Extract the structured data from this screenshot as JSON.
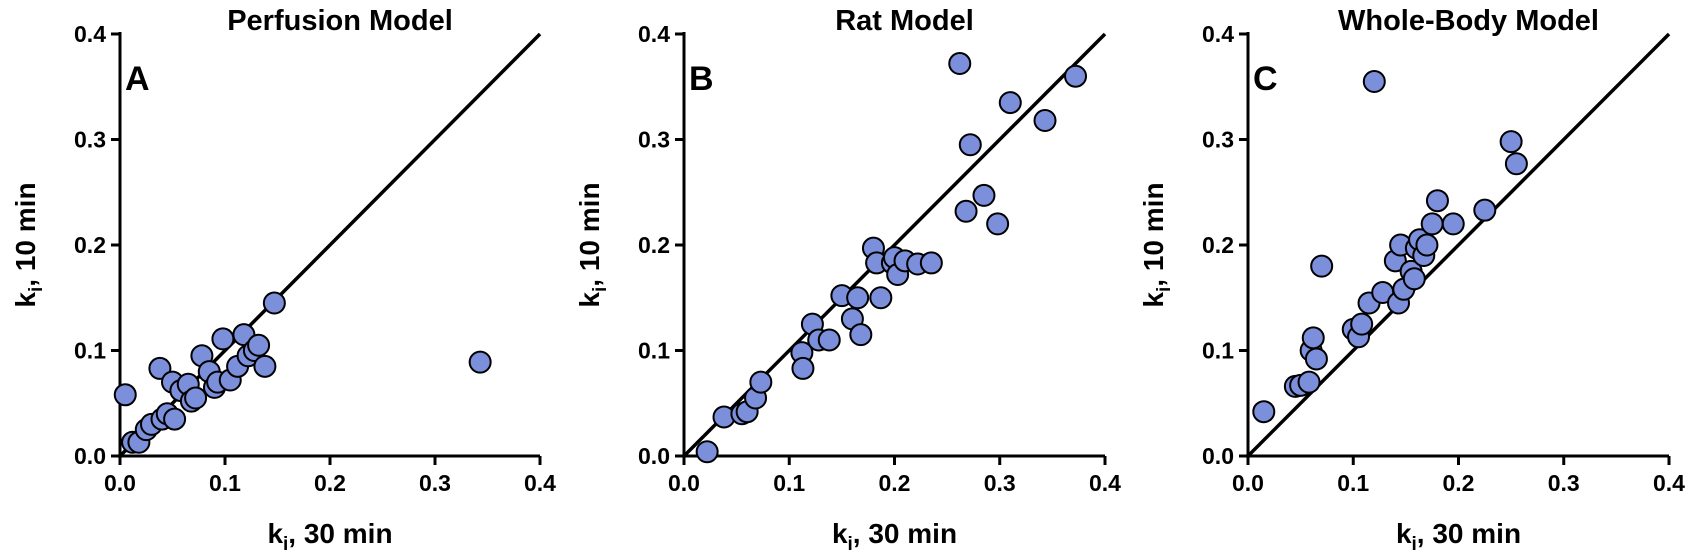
{
  "colors": {
    "marker": "#7B8FDB",
    "axis": "#000000"
  },
  "chart_data": [
    {
      "type": "scatter",
      "panel": "A",
      "title": "Perfusion Model",
      "xlabel_main": "k",
      "xlabel_sub": "i",
      "xlabel_rest": ", 30 min",
      "ylabel_main": "k",
      "ylabel_sub": "i",
      "ylabel_rest": ", 10 min",
      "xlim": [
        0,
        0.4
      ],
      "ylim": [
        0,
        0.4
      ],
      "ticks": [
        "0.0",
        "0.1",
        "0.2",
        "0.3",
        "0.4"
      ],
      "identity_line": true,
      "points": [
        [
          0.005,
          0.058
        ],
        [
          0.012,
          0.013
        ],
        [
          0.018,
          0.013
        ],
        [
          0.025,
          0.025
        ],
        [
          0.03,
          0.03
        ],
        [
          0.038,
          0.083
        ],
        [
          0.04,
          0.035
        ],
        [
          0.045,
          0.04
        ],
        [
          0.05,
          0.07
        ],
        [
          0.052,
          0.035
        ],
        [
          0.058,
          0.062
        ],
        [
          0.065,
          0.068
        ],
        [
          0.068,
          0.052
        ],
        [
          0.072,
          0.055
        ],
        [
          0.078,
          0.095
        ],
        [
          0.085,
          0.08
        ],
        [
          0.09,
          0.065
        ],
        [
          0.093,
          0.07
        ],
        [
          0.098,
          0.111
        ],
        [
          0.105,
          0.072
        ],
        [
          0.112,
          0.085
        ],
        [
          0.118,
          0.115
        ],
        [
          0.122,
          0.095
        ],
        [
          0.128,
          0.1
        ],
        [
          0.132,
          0.105
        ],
        [
          0.138,
          0.085
        ],
        [
          0.147,
          0.145
        ],
        [
          0.343,
          0.089
        ]
      ]
    },
    {
      "type": "scatter",
      "panel": "B",
      "title": "Rat Model",
      "xlabel_main": "k",
      "xlabel_sub": "i",
      "xlabel_rest": ", 30 min",
      "ylabel_main": "k",
      "ylabel_sub": "i",
      "ylabel_rest": ", 10 min",
      "xlim": [
        0,
        0.4
      ],
      "ylim": [
        0,
        0.4
      ],
      "ticks": [
        "0.0",
        "0.1",
        "0.2",
        "0.3",
        "0.4"
      ],
      "identity_line": true,
      "points": [
        [
          0.022,
          0.004
        ],
        [
          0.038,
          0.037
        ],
        [
          0.055,
          0.04
        ],
        [
          0.06,
          0.042
        ],
        [
          0.068,
          0.055
        ],
        [
          0.073,
          0.07
        ],
        [
          0.112,
          0.098
        ],
        [
          0.113,
          0.083
        ],
        [
          0.122,
          0.125
        ],
        [
          0.128,
          0.11
        ],
        [
          0.138,
          0.11
        ],
        [
          0.15,
          0.152
        ],
        [
          0.16,
          0.13
        ],
        [
          0.165,
          0.15
        ],
        [
          0.168,
          0.115
        ],
        [
          0.18,
          0.197
        ],
        [
          0.183,
          0.183
        ],
        [
          0.187,
          0.15
        ],
        [
          0.198,
          0.183
        ],
        [
          0.2,
          0.188
        ],
        [
          0.203,
          0.172
        ],
        [
          0.21,
          0.185
        ],
        [
          0.222,
          0.182
        ],
        [
          0.235,
          0.183
        ],
        [
          0.262,
          0.372
        ],
        [
          0.268,
          0.232
        ],
        [
          0.272,
          0.295
        ],
        [
          0.285,
          0.247
        ],
        [
          0.298,
          0.22
        ],
        [
          0.31,
          0.335
        ],
        [
          0.343,
          0.318
        ],
        [
          0.372,
          0.36
        ]
      ]
    },
    {
      "type": "scatter",
      "panel": "C",
      "title": "Whole-Body Model",
      "xlabel_main": "k",
      "xlabel_sub": "i",
      "xlabel_rest": ", 30 min",
      "ylabel_main": "k",
      "ylabel_sub": "i",
      "ylabel_rest": ", 10 min",
      "xlim": [
        0,
        0.4
      ],
      "ylim": [
        0,
        0.4
      ],
      "ticks": [
        "0.0",
        "0.1",
        "0.2",
        "0.3",
        "0.4"
      ],
      "identity_line": true,
      "points": [
        [
          0.015,
          0.042
        ],
        [
          0.045,
          0.066
        ],
        [
          0.05,
          0.067
        ],
        [
          0.058,
          0.07
        ],
        [
          0.06,
          0.1
        ],
        [
          0.062,
          0.112
        ],
        [
          0.065,
          0.092
        ],
        [
          0.07,
          0.18
        ],
        [
          0.1,
          0.12
        ],
        [
          0.105,
          0.113
        ],
        [
          0.108,
          0.125
        ],
        [
          0.115,
          0.145
        ],
        [
          0.12,
          0.355
        ],
        [
          0.128,
          0.155
        ],
        [
          0.14,
          0.185
        ],
        [
          0.143,
          0.145
        ],
        [
          0.145,
          0.2
        ],
        [
          0.148,
          0.158
        ],
        [
          0.155,
          0.175
        ],
        [
          0.158,
          0.168
        ],
        [
          0.16,
          0.197
        ],
        [
          0.163,
          0.205
        ],
        [
          0.167,
          0.19
        ],
        [
          0.17,
          0.2
        ],
        [
          0.175,
          0.22
        ],
        [
          0.18,
          0.242
        ],
        [
          0.195,
          0.22
        ],
        [
          0.225,
          0.233
        ],
        [
          0.25,
          0.298
        ],
        [
          0.255,
          0.277
        ]
      ]
    }
  ]
}
